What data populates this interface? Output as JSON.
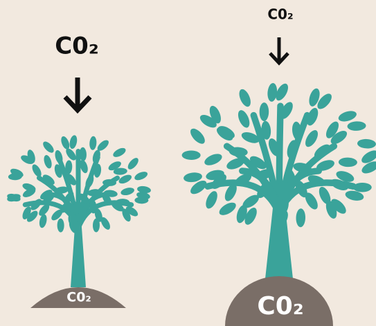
{
  "trees": [
    {
      "arrow_label": "C0₂",
      "ground_label": "C0₂"
    },
    {
      "arrow_label": "C0₂",
      "ground_label": "C0₂"
    }
  ]
}
